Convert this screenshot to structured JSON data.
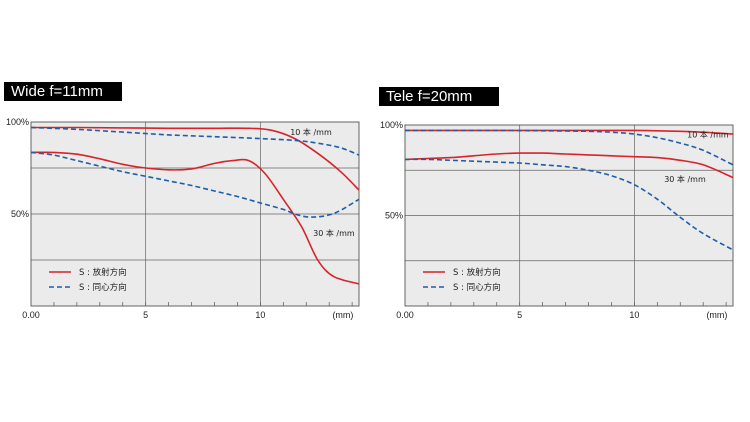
{
  "chart_data": [
    {
      "type": "line",
      "title": "Wide f=11mm",
      "xlim": [
        0,
        14.3
      ],
      "ylim": [
        0,
        100
      ],
      "x_tick_labels": [
        {
          "x": 0,
          "label": "0.00"
        },
        {
          "x": 5,
          "label": "5"
        },
        {
          "x": 10,
          "label": "10"
        },
        {
          "x": 13.6,
          "label": "(mm)"
        }
      ],
      "y_tick_labels": [
        {
          "y": 100,
          "label": "100%"
        },
        {
          "y": 50,
          "label": "50%"
        }
      ],
      "grid": true,
      "annotations": [
        {
          "text": "10 本 /mm",
          "x": 11.3,
          "y": 93
        },
        {
          "text": "30 本 /mm",
          "x": 12.3,
          "y": 38
        }
      ],
      "legend": {
        "placement": "bottom-left",
        "entries": [
          {
            "label": "S : 放射方向",
            "style": "solid",
            "color": "#d7232b"
          },
          {
            "label": "S : 同心方向",
            "style": "dashed",
            "color": "#1f5da8"
          }
        ]
      },
      "series": [
        {
          "style": "solid",
          "color": "#d7232b",
          "x": [
            0,
            2,
            4,
            6,
            8,
            9.5,
            10.5,
            11.5,
            12.5,
            13.5,
            14.3
          ],
          "y": [
            97,
            97,
            96.8,
            96.6,
            96.6,
            96.6,
            95.5,
            91,
            83,
            73,
            63
          ]
        },
        {
          "style": "dashed",
          "color": "#1f5da8",
          "x": [
            0,
            2,
            4,
            6,
            8,
            10,
            11.5,
            12.5,
            13.5,
            14.3
          ],
          "y": [
            97,
            96,
            94.5,
            93,
            92,
            91,
            90,
            88.5,
            86,
            82
          ]
        },
        {
          "style": "solid",
          "color": "#d7232b",
          "x": [
            0,
            1,
            2,
            3,
            4,
            5,
            6,
            7,
            8,
            8.8,
            9.5,
            10.2,
            11,
            11.8,
            12.5,
            13.2,
            14.3
          ],
          "y": [
            83.5,
            83.5,
            82.5,
            80,
            77,
            75,
            74,
            74.5,
            77.5,
            79,
            79,
            72,
            58,
            43,
            25,
            16,
            12
          ]
        },
        {
          "style": "dashed",
          "color": "#1f5da8",
          "x": [
            0,
            1,
            2,
            3,
            4,
            5,
            6,
            7,
            8,
            9,
            10,
            11,
            11.5,
            12,
            12.5,
            13,
            13.5,
            14.3
          ],
          "y": [
            83.5,
            82,
            79,
            76,
            73,
            70.5,
            68,
            65.5,
            62.5,
            59.5,
            56,
            52.5,
            50,
            48.5,
            48.5,
            49.5,
            52,
            58
          ]
        }
      ]
    },
    {
      "type": "line",
      "title": "Tele f=20mm",
      "xlim": [
        0,
        14.3
      ],
      "ylim": [
        0,
        100
      ],
      "x_tick_labels": [
        {
          "x": 0,
          "label": "0.00"
        },
        {
          "x": 5,
          "label": "5"
        },
        {
          "x": 10,
          "label": "10"
        },
        {
          "x": 13.6,
          "label": "(mm)"
        }
      ],
      "y_tick_labels": [
        {
          "y": 100,
          "label": "100%"
        },
        {
          "y": 50,
          "label": "50%"
        }
      ],
      "grid": true,
      "annotations": [
        {
          "text": "10 本 /mm",
          "x": 12.3,
          "y": 93
        },
        {
          "text": "30 本 /mm",
          "x": 11.3,
          "y": 68.5
        }
      ],
      "legend": {
        "placement": "bottom-left",
        "entries": [
          {
            "label": "S : 放射方向",
            "style": "solid",
            "color": "#d7232b"
          },
          {
            "label": "S : 同心方向",
            "style": "dashed",
            "color": "#1f5da8"
          }
        ]
      },
      "series": [
        {
          "style": "solid",
          "color": "#d7232b",
          "x": [
            0,
            2,
            4,
            6,
            8,
            10,
            11,
            12,
            13,
            14.3
          ],
          "y": [
            97,
            97,
            97,
            97,
            97,
            97,
            96.8,
            96.5,
            96,
            95
          ]
        },
        {
          "style": "dashed",
          "color": "#1f5da8",
          "x": [
            0,
            2,
            4,
            6,
            8,
            9,
            10,
            11,
            12,
            13,
            14.3
          ],
          "y": [
            97,
            97,
            97,
            96.8,
            96.5,
            96,
            95,
            93,
            90,
            86,
            78
          ]
        },
        {
          "style": "solid",
          "color": "#d7232b",
          "x": [
            0,
            1,
            2,
            3,
            4,
            5,
            5.5,
            6,
            7,
            8,
            9,
            10,
            11,
            12,
            13,
            14.3
          ],
          "y": [
            81,
            81.5,
            82,
            83,
            84,
            84.5,
            84.5,
            84.5,
            84,
            83.5,
            83,
            82.5,
            82,
            80.5,
            78,
            71
          ]
        },
        {
          "style": "dashed",
          "color": "#1f5da8",
          "x": [
            0,
            1,
            2,
            3,
            4,
            5,
            6,
            7,
            8,
            9,
            10,
            11,
            12,
            13,
            14.3
          ],
          "y": [
            81,
            81,
            80.5,
            80,
            79.5,
            79,
            78,
            77,
            75,
            72,
            67,
            59,
            49,
            40,
            31
          ]
        }
      ]
    }
  ]
}
